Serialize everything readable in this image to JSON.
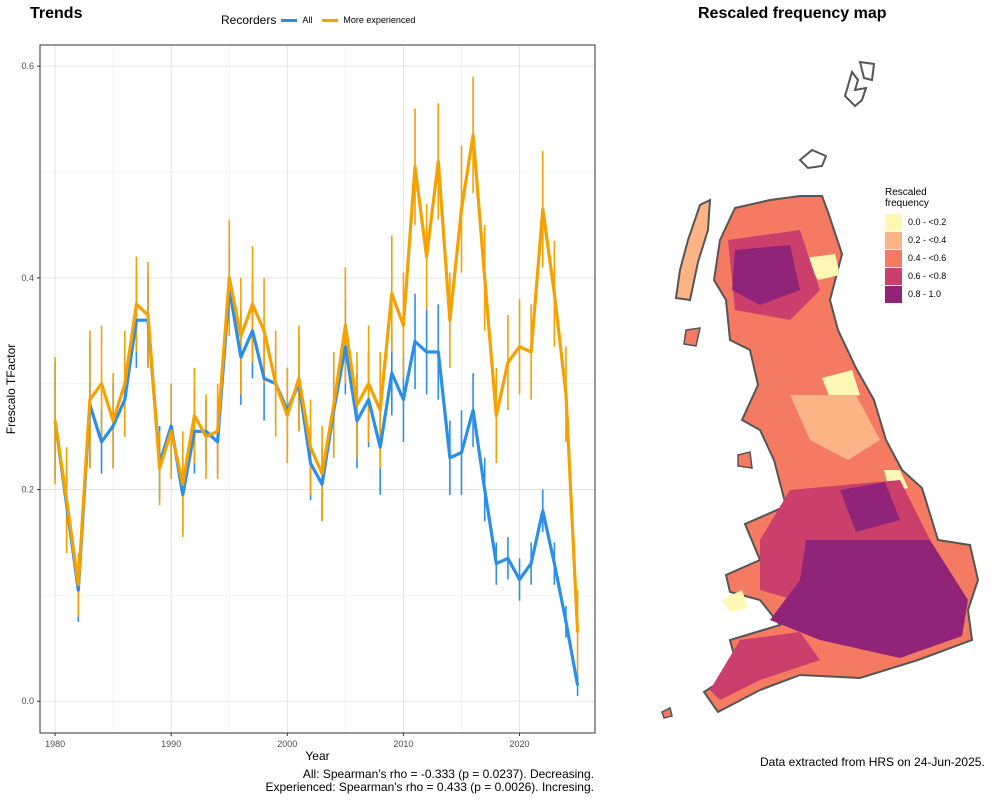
{
  "trends": {
    "title": "Trends",
    "legend": {
      "title": "Recorders",
      "items": [
        "All",
        "More experienced"
      ]
    },
    "footnote": [
      "All: Spearman's rho = -0.333 (p = 0.0237). Decreasing.",
      "Experienced: Spearman's rho = 0.433 (p = 0.0026). Incresing."
    ]
  },
  "map": {
    "title": "Rescaled frequency map",
    "legend_title": [
      "Rescaled",
      "frequency"
    ],
    "legend_items": [
      {
        "label": "0.0 - <0.2",
        "color": "#fef8b4"
      },
      {
        "label": "0.2 - <0.4",
        "color": "#fcb386"
      },
      {
        "label": "0.4 - <0.6",
        "color": "#f47a61"
      },
      {
        "label": "0.6 - <0.8",
        "color": "#cb3f6c"
      },
      {
        "label": "0.8 - 1.0",
        "color": "#8f2478"
      }
    ],
    "data_note": "Data extracted from HRS on 24-Jun-2025."
  },
  "chart_data": {
    "type": "line",
    "title": "Trends",
    "xlabel": "Year",
    "ylabel": "Frescalo TFactor",
    "xlim": [
      1978.7,
      2026.5
    ],
    "ylim": [
      -0.03,
      0.62
    ],
    "xticks": [
      1980,
      1990,
      2000,
      2010,
      2020
    ],
    "yticks": [
      0.0,
      0.2,
      0.4,
      0.6
    ],
    "x": [
      1980,
      1981,
      1982,
      1983,
      1984,
      1985,
      1986,
      1987,
      1988,
      1989,
      1990,
      1991,
      1992,
      1993,
      1994,
      1995,
      1996,
      1997,
      1998,
      1999,
      2000,
      2001,
      2002,
      2003,
      2004,
      2005,
      2006,
      2007,
      2008,
      2009,
      2010,
      2011,
      2012,
      2013,
      2014,
      2015,
      2016,
      2017,
      2018,
      2019,
      2020,
      2021,
      2022,
      2023,
      2024,
      2025
    ],
    "series": [
      {
        "name": "All",
        "color": "#2b8fea",
        "values": [
          0.265,
          0.185,
          0.105,
          0.28,
          0.245,
          0.26,
          0.285,
          0.36,
          0.36,
          0.225,
          0.26,
          0.195,
          0.255,
          0.255,
          0.245,
          0.39,
          0.325,
          0.35,
          0.305,
          0.3,
          0.275,
          0.3,
          0.225,
          0.205,
          0.275,
          0.335,
          0.265,
          0.285,
          0.24,
          0.31,
          0.285,
          0.34,
          0.33,
          0.33,
          0.23,
          0.235,
          0.275,
          0.2,
          0.13,
          0.135,
          0.115,
          0.13,
          0.18,
          0.13,
          0.075,
          0.015
        ],
        "error": [
          0.055,
          0.045,
          0.03,
          0.06,
          0.03,
          0.04,
          0.035,
          0.045,
          0.045,
          0.035,
          0.04,
          0.035,
          0.04,
          0.03,
          0.03,
          0.045,
          0.045,
          0.045,
          0.04,
          0.04,
          0.04,
          0.045,
          0.035,
          0.035,
          0.045,
          0.045,
          0.045,
          0.045,
          0.045,
          0.04,
          0.04,
          0.045,
          0.04,
          0.045,
          0.035,
          0.04,
          0.035,
          0.03,
          0.02,
          0.02,
          0.02,
          0.02,
          0.02,
          0.02,
          0.015,
          0.01
        ]
      },
      {
        "name": "More experienced",
        "color": "#f5a100",
        "values": [
          0.265,
          0.19,
          0.11,
          0.285,
          0.3,
          0.265,
          0.3,
          0.375,
          0.365,
          0.22,
          0.255,
          0.205,
          0.27,
          0.25,
          0.255,
          0.4,
          0.345,
          0.375,
          0.35,
          0.3,
          0.27,
          0.305,
          0.24,
          0.215,
          0.28,
          0.355,
          0.28,
          0.3,
          0.275,
          0.385,
          0.355,
          0.505,
          0.42,
          0.51,
          0.36,
          0.465,
          0.535,
          0.4,
          0.27,
          0.32,
          0.335,
          0.33,
          0.465,
          0.385,
          0.29,
          0.065
        ],
        "error": [
          0.06,
          0.05,
          0.03,
          0.065,
          0.055,
          0.045,
          0.05,
          0.045,
          0.05,
          0.035,
          0.045,
          0.05,
          0.045,
          0.04,
          0.045,
          0.055,
          0.055,
          0.055,
          0.05,
          0.05,
          0.045,
          0.05,
          0.045,
          0.045,
          0.05,
          0.055,
          0.05,
          0.055,
          0.055,
          0.055,
          0.05,
          0.055,
          0.05,
          0.055,
          0.045,
          0.06,
          0.055,
          0.05,
          0.045,
          0.045,
          0.045,
          0.045,
          0.055,
          0.05,
          0.045,
          0.04
        ]
      }
    ]
  }
}
